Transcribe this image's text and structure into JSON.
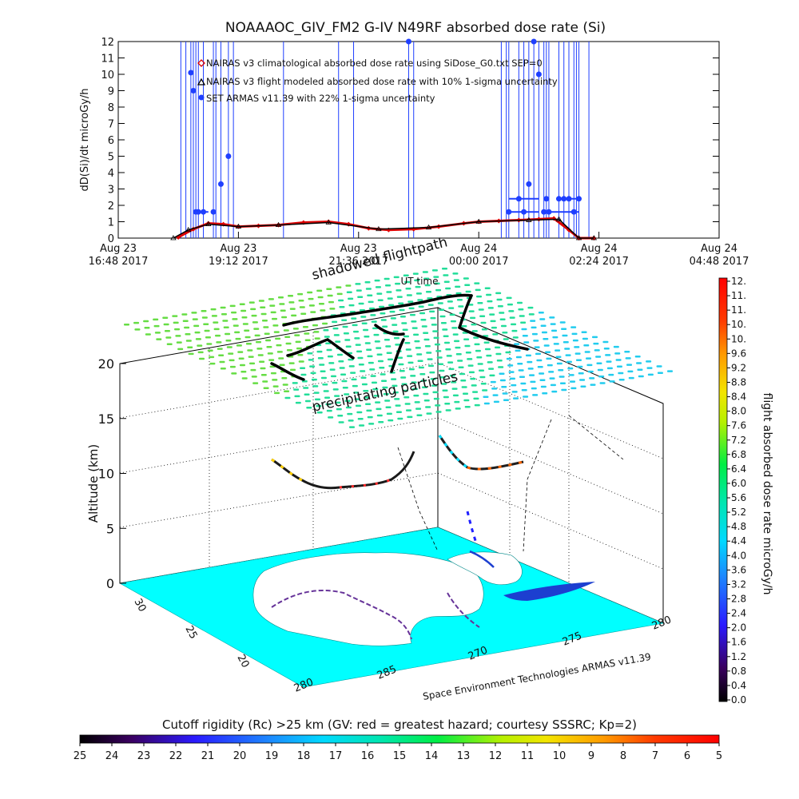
{
  "top_title": "NOAAAOC_GIV_FM2 G-IV   N49RF  absorbed dose rate (Si)",
  "chart_data": [
    {
      "type": "line",
      "title": "NOAAAOC_GIV_FM2 G-IV   N49RF  absorbed dose rate (Si)",
      "ylabel": "dD(Si)/dt microGy/h",
      "xlabel": "UT time",
      "ylim": [
        0,
        12
      ],
      "yticks": [
        "0",
        "1",
        "2",
        "3",
        "4",
        "5",
        "6",
        "7",
        "8",
        "9",
        "10",
        "11",
        "12"
      ],
      "xlim_hours": [
        16.8,
        28.8
      ],
      "xticks": [
        {
          "line1": "Aug 23",
          "line2": "16:48 2017",
          "hour": 16.8
        },
        {
          "line1": "Aug 23",
          "line2": "19:12 2017",
          "hour": 19.2
        },
        {
          "line1": "Aug 23",
          "line2": "21:36 2017",
          "hour": 21.6
        },
        {
          "line1": "Aug 24",
          "line2": "00:00 2017",
          "hour": 24.0
        },
        {
          "line1": "Aug 24",
          "line2": "02:24 2017",
          "hour": 26.4
        },
        {
          "line1": "Aug 24",
          "line2": "04:48 2017",
          "hour": 28.8
        }
      ],
      "legend_position": "top-left",
      "series": [
        {
          "name": "NAIRAS v3 climatological absorbed dose rate using SiDose_G0.txt SEP=0",
          "color": "#dd0000",
          "marker": "diamond",
          "x": [
            18.0,
            18.3,
            18.6,
            18.9,
            19.2,
            19.6,
            20.0,
            20.5,
            21.0,
            21.4,
            21.8,
            22.2,
            22.7,
            23.2,
            23.7,
            24.0,
            24.4,
            24.8,
            25.2,
            25.5,
            25.8,
            26.0,
            26.3
          ],
          "y": [
            0.05,
            0.55,
            0.9,
            0.85,
            0.7,
            0.75,
            0.8,
            0.95,
            1.0,
            0.85,
            0.6,
            0.5,
            0.55,
            0.7,
            0.9,
            1.0,
            1.05,
            1.1,
            1.15,
            1.2,
            0.5,
            0.0,
            0.0
          ]
        },
        {
          "name": "NAIRAS v3 flight modeled absorbed dose rate with 10% 1-sigma uncertainty",
          "color": "#000000",
          "marker": "triangle",
          "x": [
            17.9,
            18.2,
            18.6,
            19.2,
            20.0,
            21.0,
            22.0,
            23.0,
            24.0,
            25.0,
            25.6,
            26.0,
            26.3
          ],
          "y": [
            0.0,
            0.5,
            0.85,
            0.7,
            0.8,
            0.95,
            0.55,
            0.65,
            1.0,
            1.1,
            1.15,
            0.0,
            0.0
          ]
        },
        {
          "name": "SET ARMAS v11.39 with 22% 1-sigma uncertainty",
          "color": "#1f3fff",
          "marker": "circle",
          "x": [
            18.25,
            18.3,
            18.35,
            18.4,
            18.5,
            18.7,
            18.85,
            19.0,
            22.6,
            24.6,
            24.8,
            24.9,
            25.0,
            25.1,
            25.2,
            25.3,
            25.35,
            25.4,
            25.6,
            25.7,
            25.8,
            25.9,
            26.0
          ],
          "y": [
            10.1,
            9.0,
            1.6,
            1.6,
            1.6,
            1.6,
            3.3,
            5.0,
            12.0,
            1.6,
            2.4,
            1.6,
            3.3,
            12.0,
            10.0,
            1.6,
            2.4,
            1.6,
            2.4,
            2.4,
            2.4,
            1.6,
            2.4
          ]
        }
      ]
    },
    {
      "type": "3d-trajectory",
      "labels": {
        "zlabel": "Altitude (km)",
        "zticks": [
          "0",
          "5",
          "10",
          "15",
          "20"
        ],
        "lat_ticks": [
          "30",
          "25",
          "20"
        ],
        "lon_ticks": [
          "280",
          "285",
          "270",
          "275",
          "280"
        ],
        "shadow_label": "shadowed flightpath",
        "ut_label": "UT time",
        "particles_label": "precipitating particles",
        "credit": "Space Environment Technologies ARMAS v11.39"
      }
    }
  ],
  "right_colorbar": {
    "label": "flight absorbed dose rate microGy/h",
    "ticks": [
      "12.",
      "11.",
      "11.",
      "10.",
      "10.",
      "9.6",
      "9.2",
      "8.8",
      "8.4",
      "8.0",
      "7.6",
      "7.2",
      "6.8",
      "6.4",
      "6.0",
      "5.6",
      "5.2",
      "4.8",
      "4.4",
      "4.0",
      "3.6",
      "3.2",
      "2.8",
      "2.4",
      "2.0",
      "1.6",
      "1.2",
      "0.8",
      "0.4",
      "0.0"
    ]
  },
  "bottom_colorbar": {
    "title": "Cutoff rigidity (Rc) >25 km (GV: red = greatest hazard; courtesy SSSRC; Kp=2)",
    "ticks": [
      "25",
      "24",
      "23",
      "22",
      "21",
      "20",
      "19",
      "18",
      "17",
      "16",
      "15",
      "14",
      "13",
      "12",
      "11",
      "10",
      "9",
      "8",
      "7",
      "6",
      "5"
    ]
  },
  "colors": {
    "ocean": "#00ffff",
    "land": "#ffffff",
    "grid_dots": "#00e0a0",
    "axis": "#000000"
  }
}
